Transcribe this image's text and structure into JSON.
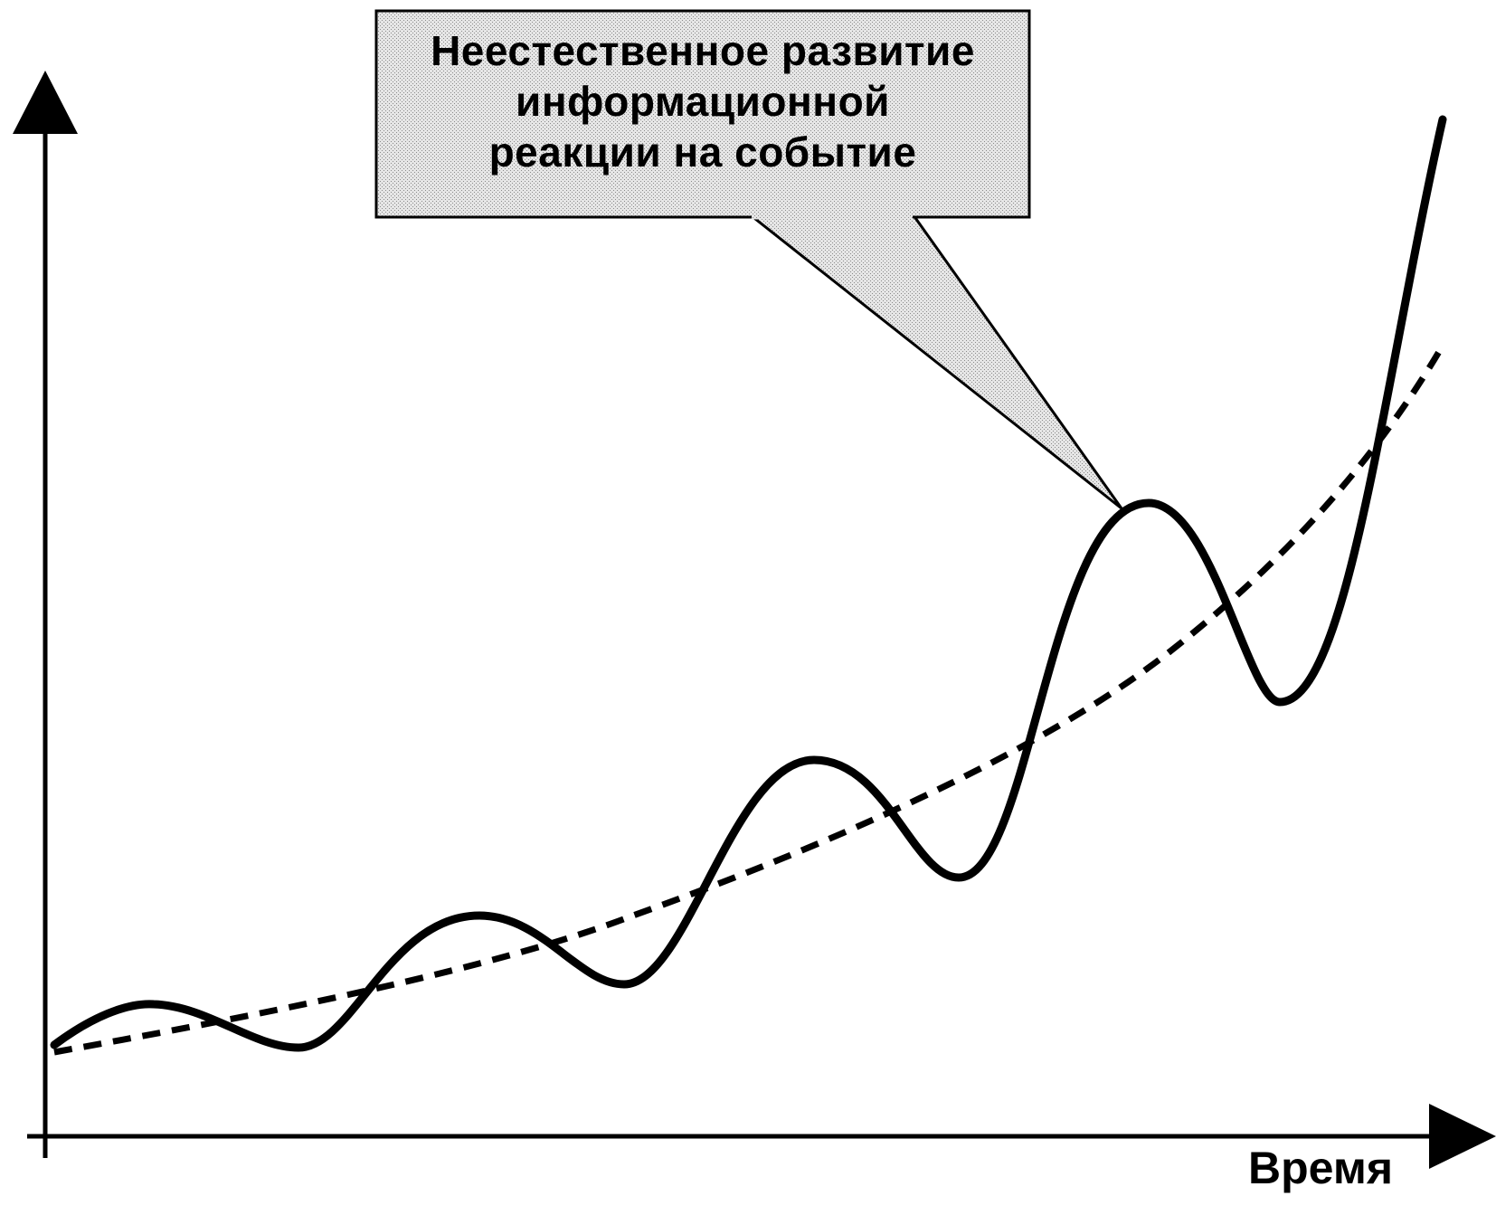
{
  "callout": {
    "lines": [
      "Неестественное развитие",
      "информационной",
      "реакции на событие"
    ]
  },
  "axes": {
    "x_label": "Время"
  },
  "colors": {
    "curve": "#000000",
    "callout_fill": "#d9d9d9",
    "background": "#ffffff"
  }
}
